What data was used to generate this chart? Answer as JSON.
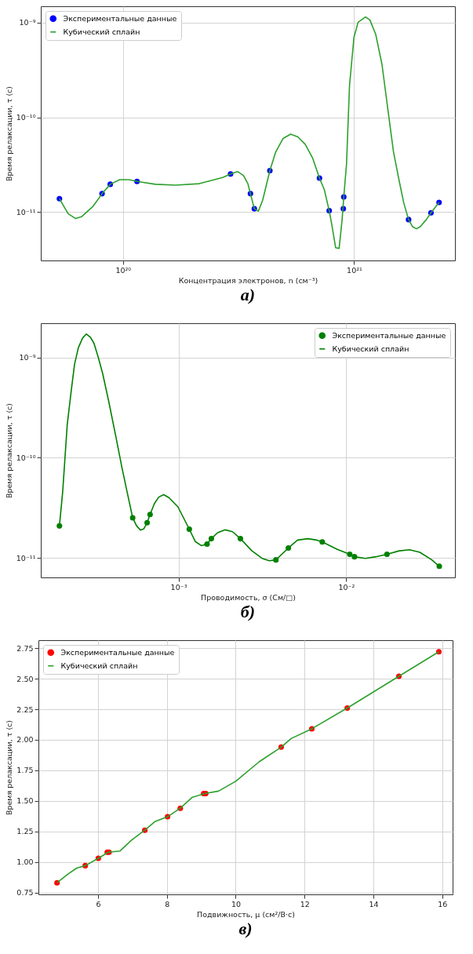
{
  "chart_data": [
    {
      "type": "scatter",
      "log": "xy",
      "grid": true,
      "legend": "top left",
      "xlabel": "Концентрация электронов, n (см⁻³)",
      "ylabel": "Время релаксации, τ (с)",
      "annotations": [
        "а)"
      ],
      "xlim": [
        4.41e+19,
        2.73e+21
      ],
      "ylim": [
        3.07e-12,
        1.49e-09
      ],
      "xticks": [
        {
          "value": 1e+20,
          "label": "10²⁰"
        },
        {
          "value": 1e+21,
          "label": "10²¹"
        }
      ],
      "yticks": [
        {
          "value": 1e-11,
          "label": "10⁻¹¹"
        },
        {
          "value": 1e-10,
          "label": "10⁻¹⁰"
        },
        {
          "value": 1e-09,
          "label": "10⁻⁹"
        }
      ],
      "series": [
        {
          "name": "Экспериментальные данные",
          "type": "scatter",
          "marker": "circle",
          "color": "#0000ff",
          "x": [
            5.31e+19,
            8.12e+19,
            8.81e+19,
            1.15e+20,
            2.92e+20,
            3.56e+20,
            3.7e+20,
            4.32e+20,
            7.08e+20,
            7.8e+20,
            8.98e+20,
            9.02e+20,
            1.72e+21,
            2.15e+21,
            2.33e+21
          ],
          "values": [
            1.38e-11,
            1.56e-11,
            1.96e-11,
            2.1e-11,
            2.52e-11,
            1.56e-11,
            1.08e-11,
            2.73e-11,
            2.28e-11,
            1.03e-11,
            1.08e-11,
            1.44e-11,
            8.3e-12,
            9.8e-12,
            1.26e-11
          ]
        },
        {
          "name": "Кубический сплайн",
          "type": "line",
          "color": "#2ca02c",
          "x": [
            5.31e+19,
            5.79e+19,
            6.24e+19,
            6.61e+19,
            7.43e+19,
            8.12e+19,
            8.81e+19,
            9.68e+19,
            1.06e+20,
            1.15e+20,
            1.38e+20,
            1.69e+20,
            2.14e+20,
            2.7e+20,
            2.92e+20,
            3.13e+20,
            3.32e+20,
            3.47e+20,
            3.56e+20,
            3.7e+20,
            3.85e+20,
            4.02e+20,
            4.32e+20,
            4.58e+20,
            4.93e+20,
            5.31e+20,
            5.71e+20,
            6.15e+20,
            6.61e+20,
            7.08e+20,
            7.43e+20,
            7.8e+20,
            8e+20,
            8.32e+20,
            8.61e+20,
            8.87e+20,
            9.02e+20,
            9.27e+20,
            9.55e+20,
            9.98e+20,
            1.04e+21,
            1.12e+21,
            1.17e+21,
            1.24e+21,
            1.32e+21,
            1.4e+21,
            1.48e+21,
            1.57e+21,
            1.64e+21,
            1.72e+21,
            1.79e+21,
            1.86e+21,
            1.93e+21,
            2.05e+21,
            2.15e+21,
            2.33e+21
          ],
          "values": [
            1.38e-11,
            9.57e-12,
            8.51e-12,
            8.89e-12,
            1.15e-11,
            1.56e-11,
            1.96e-11,
            2.19e-11,
            2.19e-11,
            2.1e-11,
            1.96e-11,
            1.92e-11,
            1.99e-11,
            2.31e-11,
            2.52e-11,
            2.67e-11,
            2.43e-11,
            1.99e-11,
            1.56e-11,
            1.08e-11,
            1.02e-11,
            1.33e-11,
            2.73e-11,
            4.31e-11,
            5.98e-11,
            6.64e-11,
            6.21e-11,
            5.16e-11,
            3.72e-11,
            2.28e-11,
            1.72e-11,
            1.03e-11,
            7.4e-12,
            4.18e-12,
            4.12e-12,
            8.26e-12,
            1.44e-11,
            3.21e-11,
            2.16e-10,
            6.98e-10,
            1.01e-09,
            1.15e-09,
            1.07e-09,
            7.52e-10,
            3.61e-10,
            1.2e-10,
            4.31e-11,
            2.07e-11,
            1.24e-11,
            8.3e-12,
            6.98e-12,
            6.64e-12,
            6.98e-12,
            8.26e-12,
            9.8e-12,
            1.26e-11
          ]
        }
      ]
    },
    {
      "type": "scatter",
      "log": "xy",
      "grid": true,
      "legend": "top right",
      "xlabel": "Проводимость, σ (См/□)",
      "ylabel": "Время релаксации, τ (с)",
      "annotations": [
        "б)"
      ],
      "xlim": [
        0.000151,
        0.0445
      ],
      "ylim": [
        6.41e-12,
        2.19e-09
      ],
      "xticks": [
        {
          "value": 0.001,
          "label": "10⁻³"
        },
        {
          "value": 0.01,
          "label": "10⁻²"
        }
      ],
      "yticks": [
        {
          "value": 1e-11,
          "label": "10⁻¹¹"
        },
        {
          "value": 1e-10,
          "label": "10⁻¹⁰"
        },
        {
          "value": 1e-09,
          "label": "10⁻⁹"
        }
      ],
      "series": [
        {
          "name": "Экспериментальные данные",
          "type": "scatter",
          "marker": "circle",
          "color": "#008000",
          "x": [
            0.000195,
            0.000533,
            0.00065,
            0.000677,
            0.00116,
            0.00148,
            0.00157,
            0.00234,
            0.00381,
            0.00452,
            0.0072,
            0.0105,
            0.0112,
            0.0175,
            0.0359
          ],
          "values": [
            2.09e-11,
            2.52e-11,
            2.25e-11,
            2.72e-11,
            1.94e-11,
            1.38e-11,
            1.56e-11,
            1.56e-11,
            9.59e-12,
            1.26e-11,
            1.45e-11,
            1.09e-11,
            1.03e-11,
            1.09e-11,
            8.28e-12
          ]
        },
        {
          "name": "Кубический сплайн",
          "type": "line",
          "color": "#008000",
          "x": [
            0.000195,
            0.000204,
            0.000217,
            0.000229,
            0.00024,
            0.000253,
            0.000268,
            0.000282,
            0.000298,
            0.000313,
            0.000332,
            0.000353,
            0.000383,
            0.000424,
            0.00046,
            0.000498,
            0.000533,
            0.000562,
            0.000593,
            0.000622,
            0.00065,
            0.000677,
            0.000718,
            0.000762,
            0.000816,
            0.000879,
            0.000992,
            0.00116,
            0.00126,
            0.00137,
            0.00148,
            0.00157,
            0.00171,
            0.0019,
            0.0021,
            0.00234,
            0.00274,
            0.00315,
            0.00348,
            0.00381,
            0.00452,
            0.00513,
            0.00591,
            0.00667,
            0.0072,
            0.00885,
            0.0105,
            0.0112,
            0.013,
            0.015,
            0.0175,
            0.0207,
            0.0239,
            0.0275,
            0.0324,
            0.0359
          ],
          "values": [
            2.09e-11,
            4.59e-11,
            2.12e-10,
            4.56e-10,
            8.53e-10,
            1.25e-09,
            1.56e-09,
            1.71e-09,
            1.59e-09,
            1.39e-09,
            1.01e-09,
            6.92e-10,
            3.7e-10,
            1.6e-10,
            8e-11,
            4.28e-11,
            2.52e-11,
            2.1e-11,
            1.9e-11,
            1.96e-11,
            2.25e-11,
            2.72e-11,
            3.48e-11,
            4.05e-11,
            4.28e-11,
            3.99e-11,
            3.24e-11,
            1.94e-11,
            1.46e-11,
            1.33e-11,
            1.38e-11,
            1.56e-11,
            1.79e-11,
            1.91e-11,
            1.83e-11,
            1.56e-11,
            1.18e-11,
            9.93e-12,
            9.39e-12,
            9.59e-12,
            1.26e-11,
            1.51e-11,
            1.56e-11,
            1.51e-11,
            1.45e-11,
            1.22e-11,
            1.09e-11,
            1.03e-11,
            9.93e-12,
            1.03e-11,
            1.09e-11,
            1.18e-11,
            1.21e-11,
            1.14e-11,
            9.59e-12,
            8.28e-12
          ]
        }
      ]
    },
    {
      "type": "scatter",
      "grid": true,
      "legend": "top left",
      "xlabel": "Подвижность, μ (см²/В·с)",
      "ylabel": "Время релаксации, τ (с)",
      "annotations": [
        "в)"
      ],
      "xlim": [
        4.27,
        16.3
      ],
      "ylim": [
        0.735,
        2.815
      ],
      "xticks": [
        6,
        8,
        10,
        12,
        14,
        16
      ],
      "yticks": [
        {
          "value": 0.75,
          "label": "0.75"
        },
        {
          "value": 1,
          "label": "1.00"
        },
        {
          "value": 1.25,
          "label": "1.25"
        },
        {
          "value": 1.5,
          "label": "1.50"
        },
        {
          "value": 1.75,
          "label": "1.75"
        },
        {
          "value": 2,
          "label": "2.00"
        },
        {
          "value": 2.25,
          "label": "2.25"
        },
        {
          "value": 2.5,
          "label": "2.50"
        },
        {
          "value": 2.75,
          "label": "2.75"
        }
      ],
      "series": [
        {
          "name": "Экспериментальные данные",
          "type": "scatter",
          "marker": "circle",
          "color": "#ff0000",
          "x": [
            4.81,
            5.63,
            6.01,
            6.27,
            6.32,
            7.36,
            8.02,
            8.39,
            9.07,
            9.13,
            11.32,
            12.21,
            13.24,
            14.74,
            15.9
          ],
          "values": [
            0.83,
            0.97,
            1.03,
            1.08,
            1.08,
            1.26,
            1.37,
            1.44,
            1.56,
            1.56,
            1.94,
            2.09,
            2.26,
            2.52,
            2.72
          ]
        },
        {
          "name": "Кубический сплайн",
          "type": "line",
          "color": "#2ca02c",
          "x": [
            4.81,
            5.12,
            5.38,
            5.63,
            6.01,
            6.3,
            6.64,
            6.98,
            7.36,
            7.65,
            8.02,
            8.39,
            8.74,
            9.1,
            9.5,
            10.0,
            10.68,
            11.32,
            11.61,
            12.21,
            13.24,
            14.74,
            15.9
          ],
          "values": [
            0.83,
            0.9,
            0.95,
            0.97,
            1.03,
            1.08,
            1.09,
            1.18,
            1.26,
            1.33,
            1.37,
            1.44,
            1.53,
            1.56,
            1.58,
            1.66,
            1.82,
            1.94,
            2.01,
            2.09,
            2.26,
            2.52,
            2.72
          ]
        }
      ]
    }
  ]
}
